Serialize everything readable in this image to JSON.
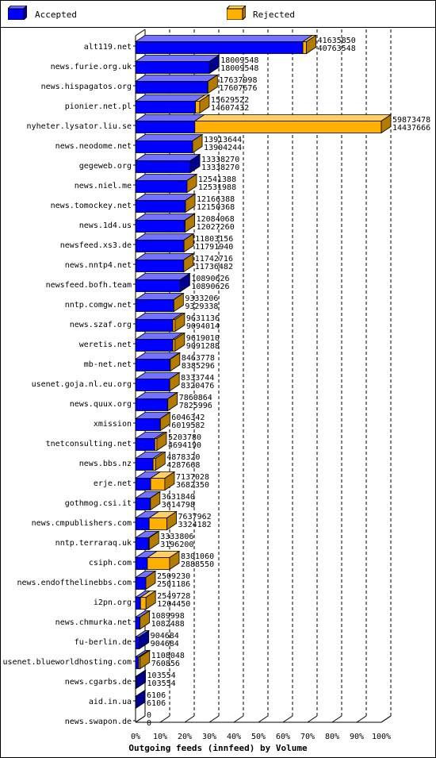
{
  "legend": {
    "accepted": "Accepted",
    "rejected": "Rejected"
  },
  "colors": {
    "accepted": "#0000ff",
    "rejected": "#ffb000",
    "edge": "#000000"
  },
  "chart_data": {
    "type": "bar",
    "orientation": "horizontal",
    "stacked": true,
    "xlabel": "Outgoing feeds (innfeed) by Volume",
    "xlim": [
      0,
      100
    ],
    "x_ticks": [
      "0%",
      "10%",
      "20%",
      "30%",
      "40%",
      "50%",
      "60%",
      "70%",
      "80%",
      "90%",
      "100%"
    ],
    "grid": true,
    "legend_position": "top",
    "categories": [
      "alt119.net",
      "news.furie.org.uk",
      "news.hispagatos.org",
      "pionier.net.pl",
      "nyheter.lysator.liu.se",
      "news.neodome.net",
      "gegeweb.org",
      "news.niel.me",
      "news.tomockey.net",
      "news.1d4.us",
      "newsfeed.xs3.de",
      "news.nntp4.net",
      "newsfeed.bofh.team",
      "nntp.comgw.net",
      "news.szaf.org",
      "weretis.net",
      "mb-net.net",
      "usenet.goja.nl.eu.org",
      "news.quux.org",
      "xmission",
      "tnetconsulting.net",
      "news.bbs.nz",
      "erje.net",
      "gothmog.csi.it",
      "news.cmpublishers.com",
      "nntp.terraraq.uk",
      "csiph.com",
      "news.endofthelinebbs.com",
      "i2pn.org",
      "news.chmurka.net",
      "fu-berlin.de",
      "usenet.blueworldhosting.com",
      "news.cgarbs.de",
      "aid.in.ua",
      "news.swapon.de"
    ],
    "offered": [
      41635850,
      18009548,
      17637998,
      15629522,
      59873478,
      13913644,
      13338270,
      12541388,
      12166388,
      12084068,
      11803156,
      11742716,
      10890626,
      9333206,
      9631136,
      9619010,
      8463778,
      8333744,
      7860864,
      6046342,
      5203780,
      4878320,
      7137028,
      3631840,
      7637962,
      3333806,
      8301060,
      2509230,
      2549728,
      1089998,
      904684,
      1108048,
      103554,
      6106,
      0
    ],
    "accepted": [
      40763548,
      18009548,
      17607676,
      14607432,
      14437666,
      13904244,
      13338270,
      12531988,
      12150368,
      12027260,
      11791940,
      11736482,
      10890626,
      9329338,
      9094014,
      9091288,
      8385296,
      8320476,
      7825996,
      6019582,
      4694190,
      4287668,
      3682350,
      3614798,
      3324182,
      3196200,
      2888550,
      2501186,
      1204450,
      1082488,
      904684,
      760856,
      103554,
      6106,
      0
    ],
    "series": [
      {
        "name": "Accepted",
        "key": "accepted",
        "color": "#0000ff"
      },
      {
        "name": "Rejected",
        "key": "rejected",
        "color": "#ffb000"
      }
    ]
  }
}
